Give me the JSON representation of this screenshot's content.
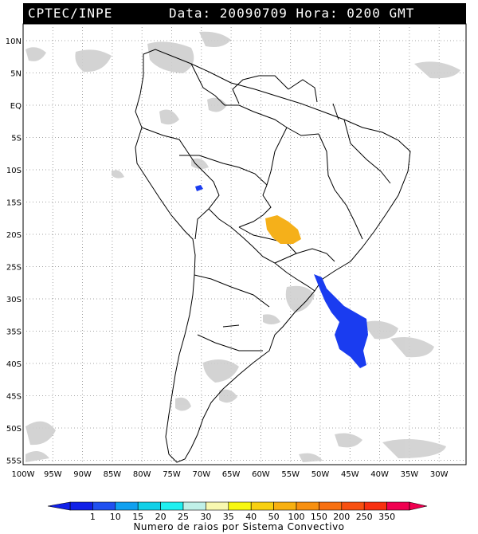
{
  "header": {
    "left": "CPTEC/INPE",
    "right": "Data: 20090709 Hora: 0200 GMT"
  },
  "lat_ticks": [
    "10N",
    "5N",
    "EQ",
    "5S",
    "10S",
    "15S",
    "20S",
    "25S",
    "30S",
    "35S",
    "40S",
    "45S",
    "50S",
    "55S"
  ],
  "lon_ticks": [
    "100W",
    "95W",
    "90W",
    "85W",
    "80W",
    "75W",
    "70W",
    "65W",
    "60W",
    "55W",
    "50W",
    "45W",
    "40W",
    "35W",
    "30W"
  ],
  "legend": {
    "labels": [
      "1",
      "10",
      "15",
      "20",
      "25",
      "30",
      "35",
      "40",
      "50",
      "100",
      "150",
      "200",
      "250",
      "350"
    ],
    "colors": [
      "#1020e8",
      "#2050f0",
      "#10a0f0",
      "#10d0e8",
      "#20f0f0",
      "#c0f0e8",
      "#f8f8b0",
      "#f8f810",
      "#f8d010",
      "#f8b010",
      "#f89010",
      "#f87010",
      "#f85010",
      "#f83010",
      "#f00050"
    ],
    "caption": "Numero de raios por Sistema Convectivo"
  },
  "systems_colors": {
    "orange": "#f5b01a",
    "blue": "#1a3cf0",
    "cloud": "#cfcfcf"
  }
}
